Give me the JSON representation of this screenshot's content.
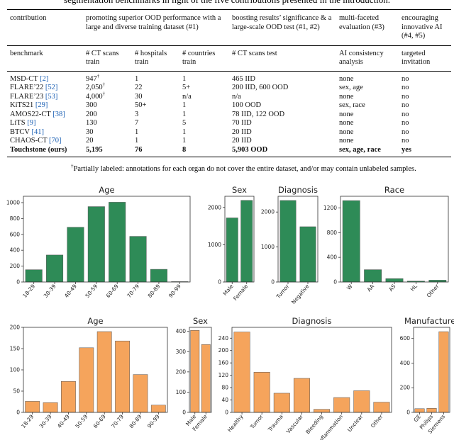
{
  "caption_fragment": "segmentation benchmarks in light of the five contributions presented in the introduction.",
  "table": {
    "group_header": [
      "contribution",
      "promoting superior OOD performance with a large and diverse training dataset (#1)",
      "boosting results’ significance & a large-scale OOD test (#1, #2)",
      "multi-faceted evaluation (#3)",
      "encouraging innovative AI (#4, #5)"
    ],
    "columns": [
      "benchmark",
      "# CT scans train",
      "# hospitals train",
      "# countries train",
      "# CT scans test",
      "AI consistency analysis",
      "targeted invitation"
    ],
    "rows": [
      [
        "MSD-CT [2]",
        "947†",
        "1",
        "1",
        "465 IID",
        "none",
        "no"
      ],
      [
        "FLARE’22 [52]",
        "2,050†",
        "22",
        "5+",
        "200 IID, 600 OOD",
        "sex, age",
        "no"
      ],
      [
        "FLARE’23 [53]",
        "4,000†",
        "30",
        "n/a",
        "n/a",
        "none",
        "no"
      ],
      [
        "KiTS21 [29]",
        "300",
        "50+",
        "1",
        "100 OOD",
        "sex, race",
        "no"
      ],
      [
        "AMOS22-CT [38]",
        "200",
        "3",
        "1",
        "78 IID, 122 OOD",
        "none",
        "no"
      ],
      [
        "LiTS [9]",
        "130",
        "7",
        "5",
        "70 IID",
        "none",
        "no"
      ],
      [
        "BTCV [41]",
        "30",
        "1",
        "1",
        "20 IID",
        "none",
        "no"
      ],
      [
        "CHAOS-CT [70]",
        "20",
        "1",
        "1",
        "20 IID",
        "none",
        "no"
      ],
      [
        "Touchstone (ours)",
        "5,195",
        "76",
        "8",
        "5,903 OOD",
        "sex, age, race",
        "yes"
      ]
    ],
    "footnote": "†Partially labeled: annotations for each organ do not cover the entire dataset, and/or may contain unlabeled samples."
  },
  "chart_data": [
    {
      "type": "bar",
      "title": "Age",
      "color": "#2e8b57",
      "categories": [
        "18-29",
        "30-39",
        "40-49",
        "50-59",
        "60-69",
        "70-79",
        "80-89",
        "90-99"
      ],
      "values": [
        155,
        340,
        690,
        950,
        1005,
        575,
        160,
        5
      ],
      "ylim": [
        0,
        1080
      ],
      "yticks": [
        0,
        200,
        400,
        600,
        800,
        1000
      ]
    },
    {
      "type": "bar",
      "title": "Sex",
      "color": "#2e8b57",
      "categories": [
        "Male",
        "Female"
      ],
      "values": [
        1720,
        2190
      ],
      "ylim": [
        0,
        2300
      ],
      "yticks": [
        0,
        1000,
        2000
      ]
    },
    {
      "type": "bar",
      "title": "Diagnosis",
      "color": "#2e8b57",
      "categories": [
        "Tumor",
        "Negative"
      ],
      "values": [
        2330,
        1580
      ],
      "ylim": [
        0,
        2450
      ],
      "yticks": [
        0,
        1000,
        2000
      ]
    },
    {
      "type": "bar",
      "title": "Race",
      "color": "#2e8b57",
      "categories": [
        "W",
        "AA",
        "AS",
        "HL",
        "Other"
      ],
      "values": [
        1320,
        200,
        55,
        15,
        30
      ],
      "ylim": [
        0,
        1390
      ],
      "yticks": [
        0,
        400,
        800,
        1200
      ]
    },
    {
      "type": "bar",
      "title": "Age",
      "color": "#f5a45c",
      "categories": [
        "18-29",
        "30-39",
        "40-49",
        "50-59",
        "60-69",
        "70-79",
        "80-89",
        "90-99"
      ],
      "values": [
        26,
        23,
        73,
        152,
        190,
        168,
        89,
        17
      ],
      "ylim": [
        0,
        200
      ],
      "yticks": [
        0,
        50,
        100,
        150,
        200
      ]
    },
    {
      "type": "bar",
      "title": "Sex",
      "color": "#f5a45c",
      "categories": [
        "Male",
        "Female"
      ],
      "values": [
        405,
        335
      ],
      "ylim": [
        0,
        420
      ],
      "yticks": [
        0,
        100,
        200,
        300,
        400
      ]
    },
    {
      "type": "bar",
      "title": "Diagnosis",
      "color": "#f5a45c",
      "categories": [
        "Healthy",
        "Tumor",
        "Trauma",
        "Vascular",
        "Bleeding",
        "Inflammation",
        "Unclear",
        "Other"
      ],
      "values": [
        260,
        130,
        62,
        110,
        10,
        48,
        70,
        33
      ],
      "ylim": [
        0,
        275
      ],
      "yticks": [
        0,
        40,
        80,
        120,
        160,
        200,
        240
      ]
    },
    {
      "type": "bar",
      "title": "Manufacturer",
      "color": "#f5a45c",
      "categories": [
        "GE",
        "Philips",
        "Siemens"
      ],
      "values": [
        30,
        33,
        655
      ],
      "ylim": [
        0,
        690
      ],
      "yticks": [
        0,
        200,
        400,
        600
      ]
    }
  ]
}
